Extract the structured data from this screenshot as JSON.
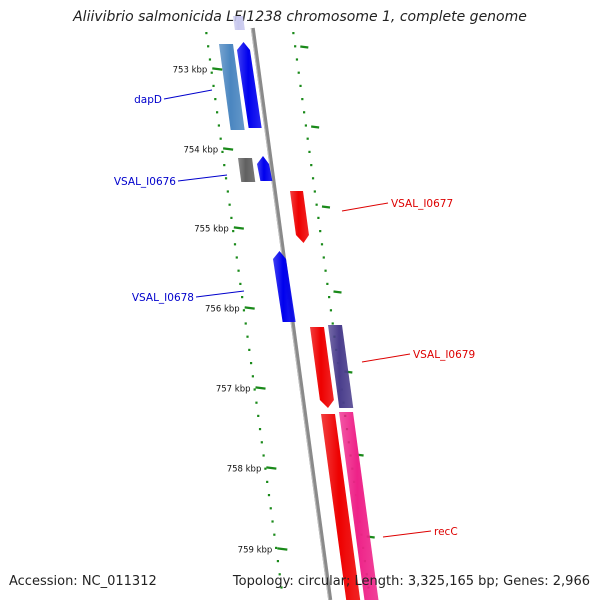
{
  "title": "Aliivibrio salmonicida LFI1238 chromosome 1, complete genome",
  "footer": {
    "accession": "Accession: NC_011312",
    "summary": "Topology: circular; Length: 3,325,165 bp; Genes: 2,966"
  },
  "colors": {
    "backbone": "#8a8a8a",
    "ticks": "#1a8a1a",
    "forward_label": "#0000cc",
    "reverse_label": "#dd0000"
  },
  "ticks": [
    "753 kbp",
    "754 kbp",
    "755 kbp",
    "756 kbp",
    "757 kbp",
    "758 kbp",
    "759 kbp"
  ],
  "genes": [
    {
      "label": "dapD",
      "strand": "forward",
      "color": "#0000ee"
    },
    {
      "label": "VSAL_I0676",
      "strand": "forward",
      "color": "#0000ee"
    },
    {
      "label": "VSAL_I0677",
      "strand": "reverse",
      "color": "#ee0000"
    },
    {
      "label": "VSAL_I0678",
      "strand": "forward",
      "color": "#0000ee"
    },
    {
      "label": "VSAL_I0679",
      "strand": "reverse",
      "color": "#ee0000"
    },
    {
      "label": "recC",
      "strand": "reverse",
      "color": "#ee0000"
    }
  ],
  "features": [
    {
      "type": "ncbi-feature",
      "color": "#4a86c0"
    },
    {
      "type": "ncbi-feature",
      "color": "#606060"
    },
    {
      "type": "ncbi-feature",
      "color": "#4a3d8c"
    },
    {
      "type": "ncbi-feature",
      "color": "#ee2288"
    },
    {
      "type": "ncbi-feature",
      "color": "#c8c8ee"
    }
  ]
}
